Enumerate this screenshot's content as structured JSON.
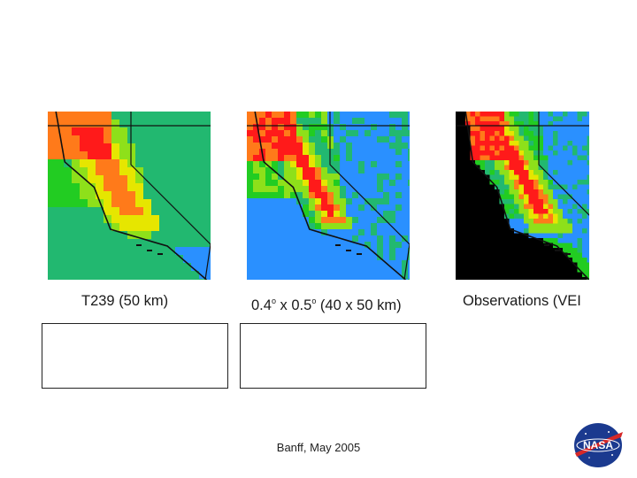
{
  "panels": [
    {
      "caption_main": "T239 (50 km)",
      "style": "coarse"
    },
    {
      "caption_a": "0.4",
      "caption_deg1": "o",
      "caption_b": " x 0.5",
      "caption_deg2": "o",
      "caption_c": " (40 x 50 km)",
      "style": "fine"
    },
    {
      "caption_main": "Observations (VEI",
      "style": "obs"
    }
  ],
  "footer": "Banff, May 2005",
  "logo_text": "NASA",
  "colors": {
    "red": "#ff1a1a",
    "orange": "#ff7a1a",
    "yellow": "#e6e600",
    "lime": "#8ee01a",
    "green": "#22cc22",
    "teal": "#22b870",
    "blue": "#2a90ff",
    "black": "#000000",
    "outline": "#111111"
  }
}
